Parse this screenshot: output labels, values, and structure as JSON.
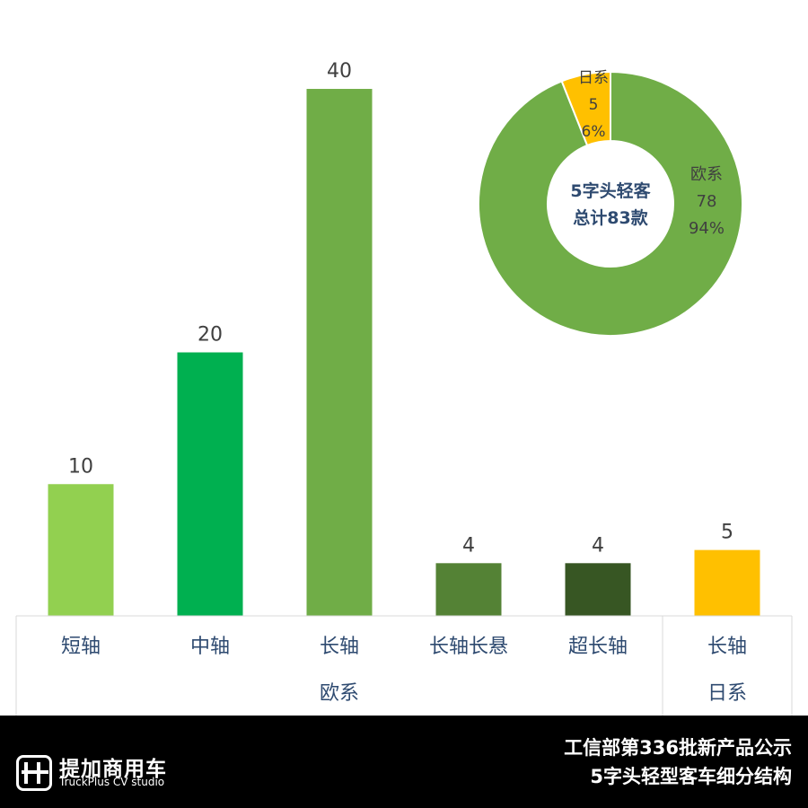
{
  "chart_data": [
    {
      "type": "bar",
      "categories": [
        "短轴",
        "中轴",
        "长轴",
        "长轴长悬",
        "超长轴",
        "长轴"
      ],
      "groups": [
        {
          "label": "欧系",
          "categories": [
            "短轴",
            "中轴",
            "长轴",
            "长轴长悬",
            "超长轴"
          ]
        },
        {
          "label": "日系",
          "categories": [
            "长轴"
          ]
        }
      ],
      "values": [
        10,
        20,
        40,
        4,
        4,
        5
      ],
      "colors": [
        "#92d050",
        "#00b050",
        "#70ad47",
        "#548235",
        "#375623",
        "#ffc000"
      ],
      "ylim": [
        0,
        43
      ],
      "grid": false,
      "title": "",
      "xlabel": "",
      "ylabel": ""
    },
    {
      "type": "pie",
      "donut": true,
      "center_text": [
        "5字头轻客",
        "总计83款"
      ],
      "slices": [
        {
          "label": "欧系",
          "value": 78,
          "percent": "94%",
          "color": "#70ad47"
        },
        {
          "label": "日系",
          "value": 5,
          "percent": "6%",
          "color": "#ffc000"
        }
      ]
    }
  ],
  "footer": {
    "brand_cn": "提加商用车",
    "brand_en": "TruckPlus CV studio",
    "title_line1": "工信部第336批新产品公示",
    "title_line2": "5字头轻型客车细分结构"
  }
}
